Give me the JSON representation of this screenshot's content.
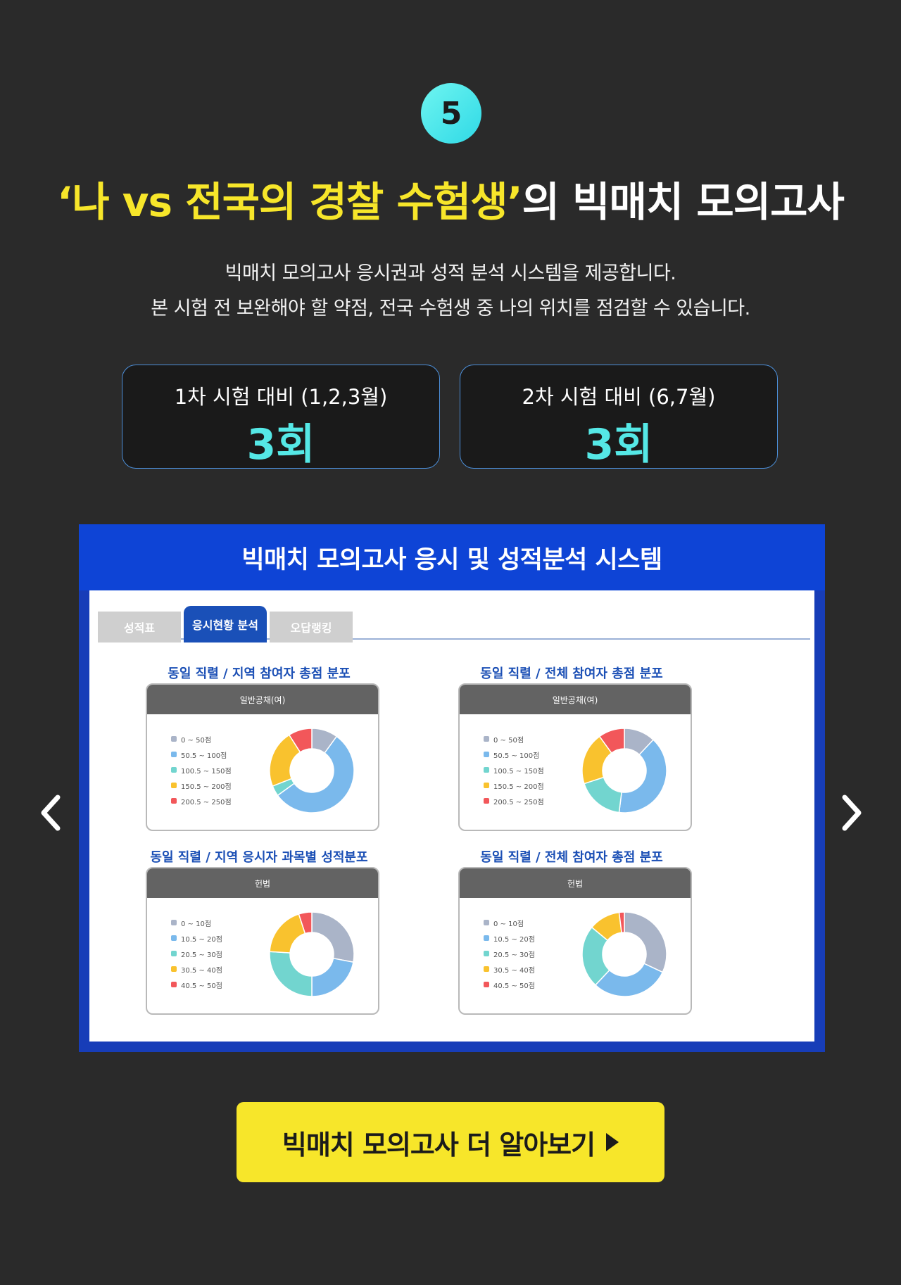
{
  "step_number": "5",
  "headline": {
    "highlight": "‘나 vs 전국의 경찰 수험생’",
    "rest": "의 빅매치 모의고사"
  },
  "description": {
    "line1": "빅매치 모의고사 응시권과 성적 분석 시스템을 제공합니다.",
    "line2": "본 시험 전 보완해야 할 약점, 전국 수험생 중 나의 위치를 점검할 수 있습니다."
  },
  "counts": [
    {
      "label": "1차 시험 대비 (1,2,3월)",
      "value": "3회"
    },
    {
      "label": "2차 시험 대비 (6,7월)",
      "value": "3회"
    }
  ],
  "panel": {
    "title": "빅매치 모의고사 응시 및 성적분석 시스템",
    "tabs": [
      "성적표",
      "응시현황 분석",
      "오답랭킹"
    ],
    "charts": [
      {
        "title": "동일 직렬 / 지역 참여자 총점 분포",
        "subject": "일반공채(여)",
        "legend": [
          "0 ~ 50점",
          "50.5 ~ 100점",
          "100.5 ~ 150점",
          "150.5 ~ 200점",
          "200.5 ~ 250점"
        ],
        "values": [
          10,
          55,
          4,
          22,
          9
        ]
      },
      {
        "title": "동일 직렬 / 전체 참여자 총점 분포",
        "subject": "일반공채(여)",
        "legend": [
          "0 ~ 50점",
          "50.5 ~ 100점",
          "100.5 ~ 150점",
          "150.5 ~ 200점",
          "200.5 ~ 250점"
        ],
        "values": [
          12,
          40,
          18,
          20,
          10
        ]
      },
      {
        "title": "동일 직렬 / 지역 응시자 과목별 성적분포",
        "subject": "헌법",
        "legend": [
          "0 ~ 10점",
          "10.5 ~ 20점",
          "20.5 ~ 30점",
          "30.5 ~ 40점",
          "40.5 ~ 50점"
        ],
        "values": [
          28,
          22,
          26,
          19,
          5
        ]
      },
      {
        "title": "동일 직렬 / 전체 참여자 총점 분포",
        "subject": "헌법",
        "legend": [
          "0 ~ 10점",
          "10.5 ~ 20점",
          "20.5 ~ 30점",
          "30.5 ~ 40점",
          "40.5 ~ 50점"
        ],
        "values": [
          32,
          30,
          24,
          12,
          2
        ]
      }
    ]
  },
  "cta_label": "빅매치 모의고사 더 알아보기",
  "colors": {
    "background": "#2a2a2a",
    "highlight_yellow": "#f7e62a",
    "count_cyan": "#55e8e6",
    "panel_blue": "#0e44d6",
    "legend": [
      "#aab4c8",
      "#7ab9ec",
      "#72d5cf",
      "#f9c22e",
      "#f2575a"
    ]
  },
  "icons": {
    "prev": "chevron-left-icon",
    "next": "chevron-right-icon",
    "cta": "play-triangle-icon"
  }
}
